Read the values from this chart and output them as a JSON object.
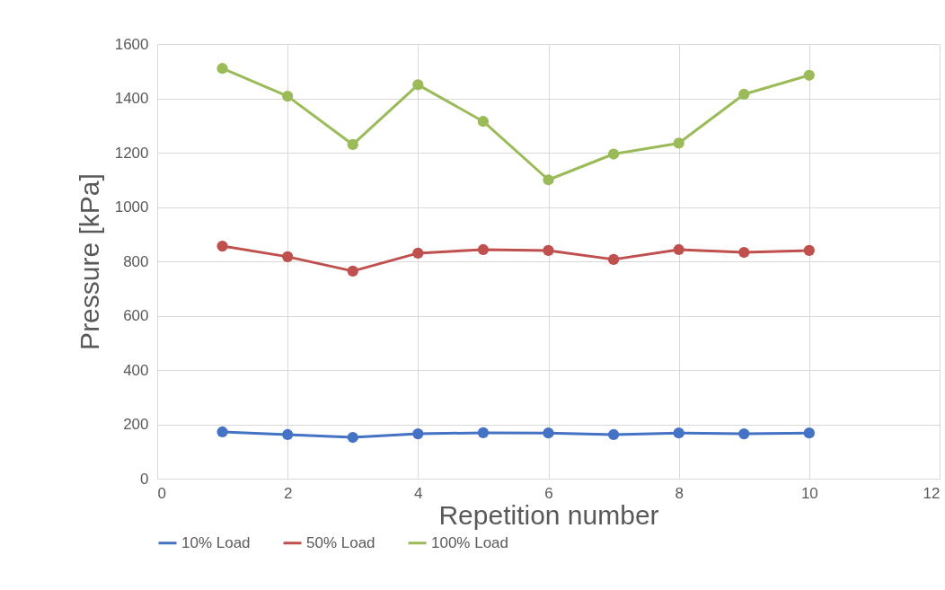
{
  "chart_data": {
    "type": "line",
    "xlabel": "Repetition number",
    "ylabel": "Pressure [kPa]",
    "x": [
      1,
      2,
      3,
      4,
      5,
      6,
      7,
      8,
      9,
      10
    ],
    "xlim": [
      0,
      12
    ],
    "xticks": [
      0,
      2,
      4,
      6,
      8,
      10,
      12
    ],
    "ylim": [
      0,
      1600
    ],
    "yticks": [
      0,
      200,
      400,
      600,
      800,
      1000,
      1200,
      1400,
      1600
    ],
    "grid": true,
    "legend": "bottom",
    "marker": "circle",
    "line_style": "solid",
    "series": [
      {
        "name": "10% Load",
        "color": "#4472c4",
        "values": [
          172,
          162,
          152,
          165,
          169,
          168,
          162,
          168,
          165,
          168
        ]
      },
      {
        "name": "50% Load",
        "color": "#c0504d",
        "values": [
          856,
          817,
          764,
          830,
          843,
          840,
          807,
          843,
          833,
          840
        ]
      },
      {
        "name": "100% Load",
        "color": "#9bbb59",
        "values": [
          1510,
          1408,
          1230,
          1450,
          1315,
          1100,
          1195,
          1235,
          1415,
          1485
        ]
      }
    ]
  }
}
